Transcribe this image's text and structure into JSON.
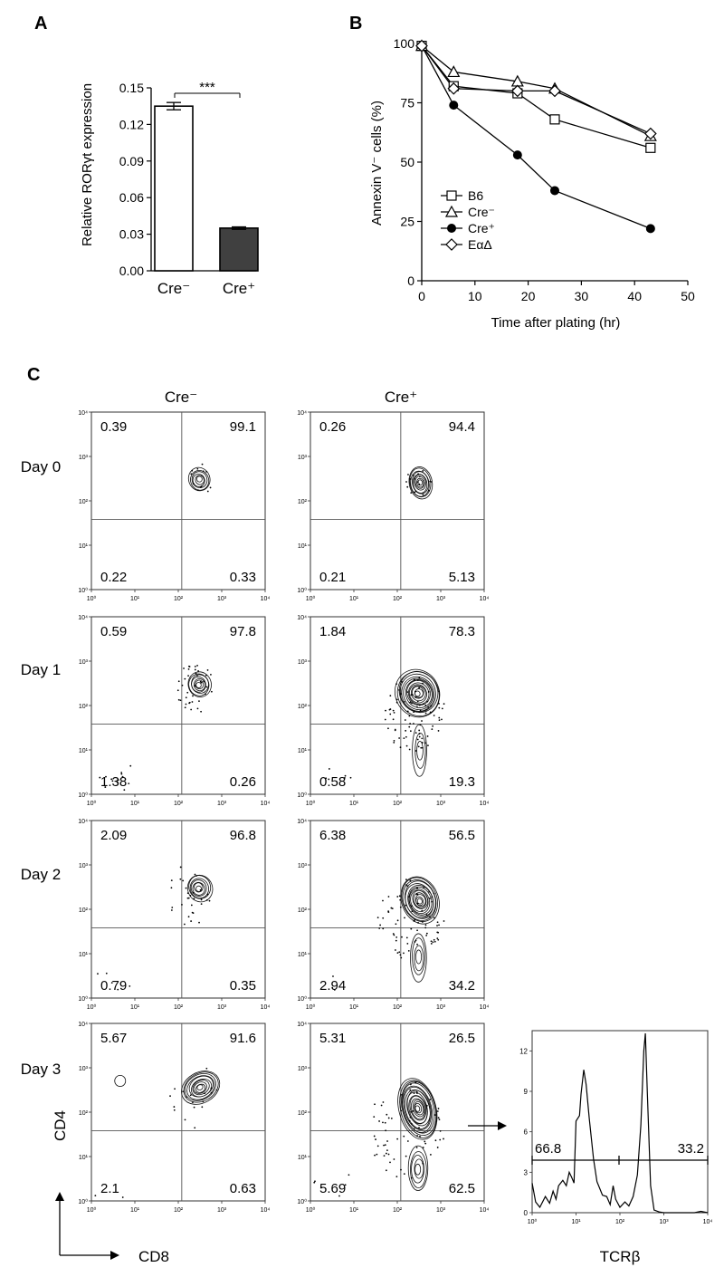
{
  "panels": {
    "a": "A",
    "b": "B",
    "c": "C"
  },
  "chart_data": [
    {
      "id": "A",
      "type": "bar",
      "categories": [
        "Cre⁻",
        "Cre⁺"
      ],
      "values": [
        0.135,
        0.035
      ],
      "errors": [
        0.003,
        0.001
      ],
      "bar_colors": [
        "#ffffff",
        "#404040"
      ],
      "ylabel": "Relative RORγt expression",
      "ylim": [
        0,
        0.15
      ],
      "yticks": [
        "0.00",
        "0.03",
        "0.06",
        "0.09",
        "0.12",
        "0.15"
      ],
      "significance": "***"
    },
    {
      "id": "B",
      "type": "line",
      "xlabel": "Time after plating (hr)",
      "ylabel": "Annexin V⁻ cells (%)",
      "xlim": [
        0,
        50
      ],
      "ylim": [
        0,
        100
      ],
      "xticks": [
        "0",
        "10",
        "20",
        "30",
        "40",
        "50"
      ],
      "yticks": [
        "0",
        "25",
        "50",
        "75",
        "100"
      ],
      "legend_position": "bottom-left",
      "series": [
        {
          "name": "B6",
          "marker": "square-open",
          "x": [
            0,
            6,
            18,
            25,
            43
          ],
          "y": [
            99,
            82,
            79,
            68,
            56
          ]
        },
        {
          "name": "Cre⁻",
          "marker": "triangle-open",
          "x": [
            0,
            6,
            18,
            25,
            43
          ],
          "y": [
            99,
            88,
            84,
            81,
            61
          ]
        },
        {
          "name": "Cre⁺",
          "marker": "circle-filled",
          "x": [
            0,
            6,
            18,
            25,
            43
          ],
          "y": [
            99,
            74,
            53,
            38,
            22
          ]
        },
        {
          "name": "EαΔ",
          "marker": "diamond-open",
          "x": [
            0,
            6,
            18,
            25,
            43
          ],
          "y": [
            99,
            81,
            80,
            80,
            62
          ]
        }
      ]
    },
    {
      "id": "C",
      "type": "scatter",
      "plot_style": "flow cytometry contour plots",
      "columns": [
        "Cre⁻",
        "Cre⁺"
      ],
      "xlabel": "CD8",
      "ylabel": "CD4",
      "axis_scale": "log",
      "xlim": [
        1,
        10000
      ],
      "ylim": [
        1,
        10000
      ],
      "tick_labels": [
        "10⁰",
        "10¹",
        "10²",
        "10³",
        "10⁴"
      ],
      "rows": [
        {
          "label": "Day 0",
          "plots": [
            {
              "ul": "0.39",
              "ur": "99.1",
              "ll": "0.22",
              "lr": "0.33"
            },
            {
              "ul": "0.26",
              "ur": "94.4",
              "ll": "0.21",
              "lr": "5.13"
            }
          ]
        },
        {
          "label": "Day 1",
          "plots": [
            {
              "ul": "0.59",
              "ur": "97.8",
              "ll": "1.38",
              "lr": "0.26"
            },
            {
              "ul": "1.84",
              "ur": "78.3",
              "ll": "0.58",
              "lr": "19.3"
            }
          ]
        },
        {
          "label": "Day 2",
          "plots": [
            {
              "ul": "2.09",
              "ur": "96.8",
              "ll": "0.79",
              "lr": "0.35"
            },
            {
              "ul": "6.38",
              "ur": "56.5",
              "ll": "2.94",
              "lr": "34.2"
            }
          ]
        },
        {
          "label": "Day 3",
          "plots": [
            {
              "ul": "5.67",
              "ur": "91.6",
              "ll": "2.1",
              "lr": "0.63"
            },
            {
              "ul": "5.31",
              "ur": "26.5",
              "ll": "5.69",
              "lr": "62.5"
            }
          ]
        }
      ]
    },
    {
      "id": "C-histogram",
      "type": "area",
      "xlabel": "TCRβ",
      "axis_scale": "log",
      "xlim": [
        1,
        10000
      ],
      "ylim": [
        0,
        13.5
      ],
      "yticks": [
        "0",
        "3",
        "6",
        "9",
        "12"
      ],
      "xtick_labels": [
        "10⁰",
        "10¹",
        "10²",
        "10³",
        "10⁴"
      ],
      "gate_left_percent": "66.8",
      "gate_right_percent": "33.2",
      "x": [
        1,
        1.2,
        1.5,
        2,
        2.5,
        3,
        3.5,
        4,
        5,
        6,
        7,
        8,
        9,
        10,
        12,
        13,
        15,
        17,
        20,
        25,
        30,
        40,
        50,
        60,
        70,
        80,
        100,
        130,
        160,
        200,
        250,
        300,
        350,
        380,
        420,
        500,
        600,
        800,
        1000,
        2000,
        5000,
        7000,
        10000
      ],
      "y": [
        2.2,
        0.8,
        0.4,
        1.2,
        0.7,
        1.6,
        1.0,
        2.0,
        2.4,
        2.0,
        3.0,
        2.6,
        2.2,
        6.8,
        7.2,
        8.8,
        10.6,
        9.5,
        7.0,
        4.0,
        2.3,
        1.3,
        1.2,
        0.6,
        2.0,
        1.0,
        0.4,
        0.8,
        0.5,
        1.2,
        2.8,
        6.5,
        12.0,
        13.3,
        9.0,
        2.0,
        0.2,
        0.05,
        0,
        0,
        0,
        0.1,
        0
      ]
    }
  ]
}
